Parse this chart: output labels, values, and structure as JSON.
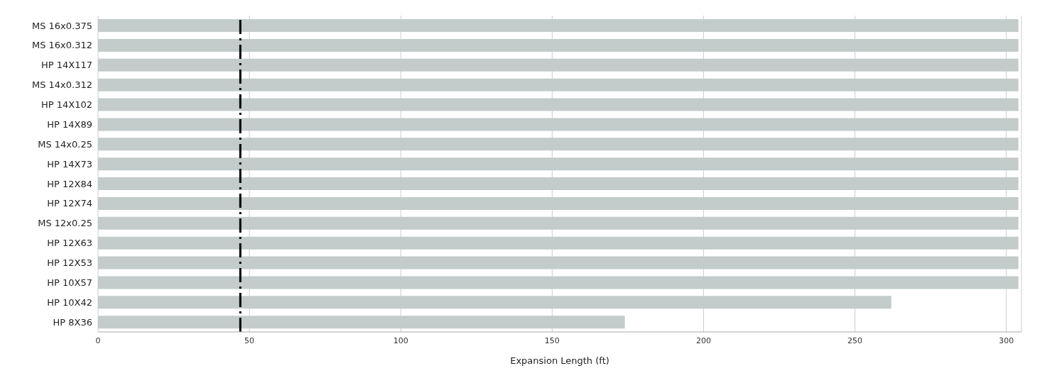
{
  "chart_data": {
    "type": "bar",
    "orientation": "horizontal",
    "xlabel": "Expansion Length (ft)",
    "categories": [
      "MS 16x0.375",
      "MS 16x0.312",
      "HP 14X117",
      "MS 14x0.312",
      "HP 14X102",
      "HP 14X89",
      "MS 14x0.25",
      "HP 14X73",
      "HP 12X84",
      "HP 12X74",
      "MS 12x0.25",
      "HP 12X63",
      "HP 12X53",
      "HP 10X57",
      "HP 10X42",
      "HP 8X36"
    ],
    "values": [
      304,
      304,
      304,
      304,
      304,
      304,
      304,
      304,
      304,
      304,
      304,
      304,
      304,
      304,
      262,
      174
    ],
    "color": "#c3cbcb",
    "xlim": [
      0,
      305
    ],
    "xticks": [
      0,
      50,
      100,
      150,
      200,
      250,
      300
    ],
    "grid": "x",
    "ref_lines": [
      {
        "axis": "x",
        "value": 47,
        "color": "#000000",
        "line_style": "dashdot"
      }
    ]
  }
}
